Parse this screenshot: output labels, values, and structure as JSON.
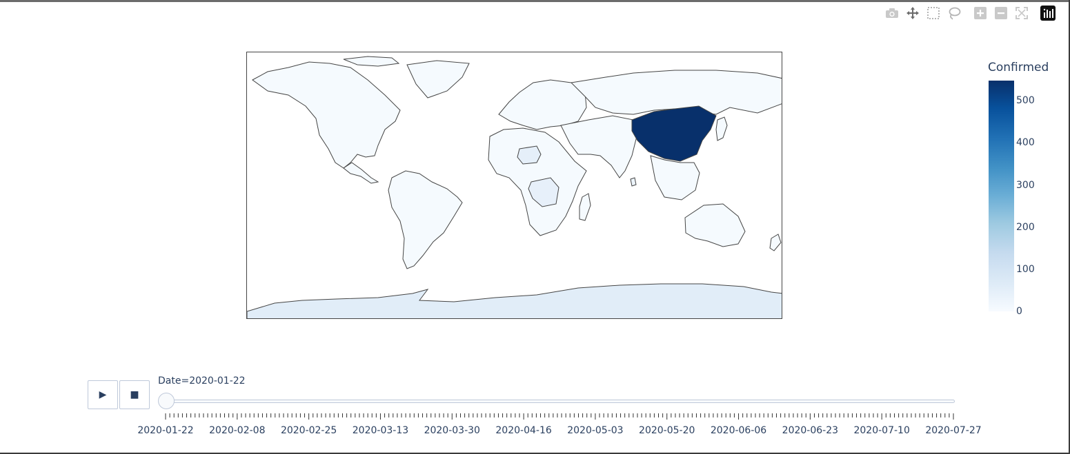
{
  "modebar": {
    "icons": [
      "camera-icon",
      "pan-icon",
      "box-select-icon",
      "lasso-icon",
      "zoom-in-icon",
      "zoom-out-icon",
      "reset-view-icon",
      "plotly-logo-icon"
    ]
  },
  "chart_data": {
    "type": "choropleth",
    "projection": "equirectangular",
    "colorscale": [
      "#f7fbff",
      "#deebf7",
      "#c6dbef",
      "#9ecae1",
      "#6baed6",
      "#4292c6",
      "#2171b5",
      "#08519c",
      "#08306b"
    ],
    "colorbar": {
      "title": "Confirmed",
      "range": [
        0,
        548
      ],
      "ticks": [
        0,
        100,
        200,
        300,
        400,
        500
      ],
      "tick_labels": [
        "0",
        "100",
        "200",
        "300",
        "400",
        "500"
      ]
    },
    "frame_date": "2020-01-22",
    "regions": [
      {
        "region": "China",
        "value": 548
      },
      {
        "region": "Antarctica",
        "value": 60
      },
      {
        "region": "Niger",
        "value": 50
      },
      {
        "region": "Congo (Kinshasa)",
        "value": 45
      },
      {
        "region": "Sri Lanka",
        "value": 30
      },
      {
        "region": "Other countries",
        "value": 5
      }
    ]
  },
  "animation": {
    "current_label": "Date=2020-01-22",
    "play_symbol": "▶",
    "stop_symbol": "■",
    "slider_ticks": [
      "2020-01-22",
      "2020-02-08",
      "2020-02-25",
      "2020-03-13",
      "2020-03-30",
      "2020-04-16",
      "2020-05-03",
      "2020-05-20",
      "2020-06-06",
      "2020-06-23",
      "2020-07-10",
      "2020-07-27"
    ],
    "frame_count": 188
  }
}
